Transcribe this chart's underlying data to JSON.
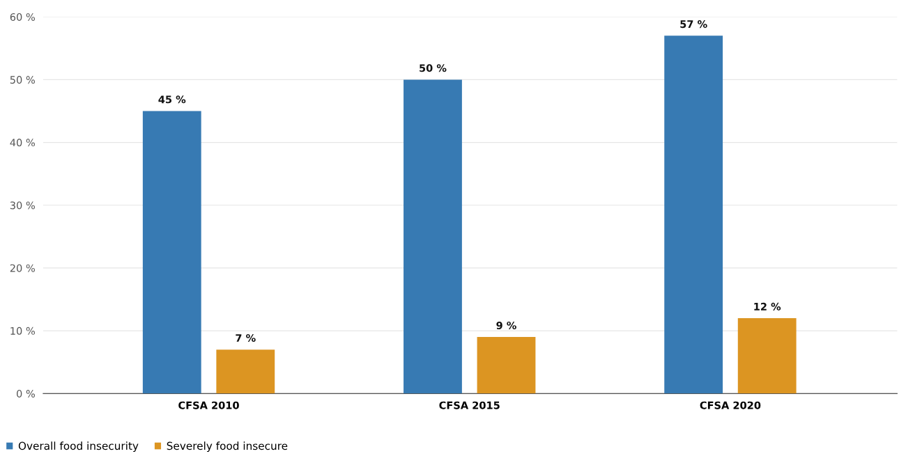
{
  "chart_data": {
    "type": "bar",
    "categories": [
      "CFSA 2010",
      "CFSA 2015",
      "CFSA 2020"
    ],
    "series": [
      {
        "name": "Overall food insecurity",
        "color": "#377ab3",
        "values": [
          45,
          50,
          57
        ],
        "value_labels": [
          "45 %",
          "50 %",
          "57 %"
        ]
      },
      {
        "name": "Severely food insecure",
        "color": "#dc9522",
        "values": [
          7,
          9,
          12
        ],
        "value_labels": [
          "7 %",
          "9 %",
          "12 %"
        ]
      }
    ],
    "ylim": [
      0,
      60
    ],
    "yticks": [
      {
        "value": 0,
        "label": "0 %"
      },
      {
        "value": 10,
        "label": "10 %"
      },
      {
        "value": 20,
        "label": "20 %"
      },
      {
        "value": 30,
        "label": "30 %"
      },
      {
        "value": 40,
        "label": "40 %"
      },
      {
        "value": 50,
        "label": "50 %"
      },
      {
        "value": 60,
        "label": "60 %"
      }
    ],
    "grid": "y",
    "legend": "bottom left"
  }
}
